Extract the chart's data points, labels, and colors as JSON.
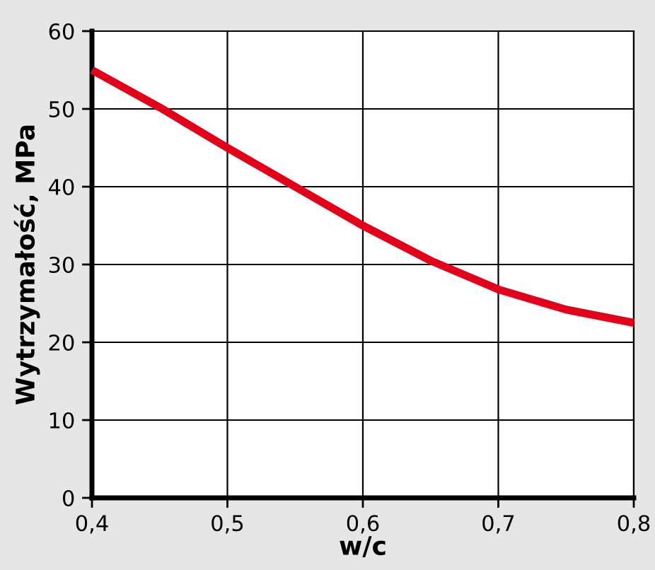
{
  "chart_data": {
    "type": "line",
    "xlabel": "w/c",
    "ylabel": "Wytrzymałość, MPa",
    "x": [
      0.4,
      0.45,
      0.5,
      0.55,
      0.6,
      0.65,
      0.7,
      0.75,
      0.8
    ],
    "series": [
      {
        "color": "#e2001a",
        "values": [
          55,
          50.2,
          45,
          40,
          35,
          30.5,
          26.8,
          24.2,
          22.5
        ]
      }
    ],
    "xlim": [
      0.4,
      0.8
    ],
    "ylim": [
      0,
      60
    ],
    "xticks": [
      {
        "value": 0.4,
        "label": "0,4"
      },
      {
        "value": 0.5,
        "label": "0,5"
      },
      {
        "value": 0.6,
        "label": "0,6"
      },
      {
        "value": 0.7,
        "label": "0,7"
      },
      {
        "value": 0.8,
        "label": "0,8"
      }
    ],
    "yticks": [
      0,
      10,
      20,
      30,
      40,
      50,
      60
    ],
    "grid": true,
    "marker": "none",
    "line_style": "solid",
    "legend": false
  }
}
